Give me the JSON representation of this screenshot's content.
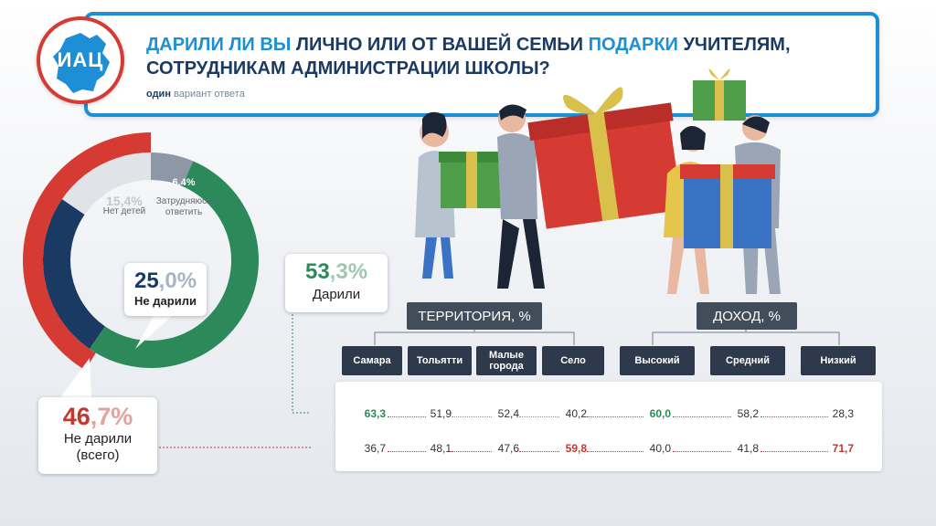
{
  "header": {
    "logo_text": "ИАЦ",
    "title_parts": [
      "Дарили ли вы",
      " лично или от вашей семьи ",
      "подарки",
      " учителям, сотрудникам администрации школы?"
    ],
    "subtitle_bold": "один",
    "subtitle_rest": " вариант ответа"
  },
  "chart_data": {
    "type": "pie",
    "title": "ДАРИЛИ ЛИ ВЫ ЛИЧНО ИЛИ ОТ ВАШЕЙ СЕМЬИ ПОДАРКИ УЧИТЕЛЯМ, СОТРУДНИКАМ АДМИНИСТРАЦИИ ШКОЛЫ?",
    "slices": [
      {
        "label": "Дарили",
        "value": 53.3,
        "color": "#2c8a5a"
      },
      {
        "label": "Не дарили",
        "value": 25.0,
        "color": "#1b3a63"
      },
      {
        "label": "Нет детей",
        "value": 15.4,
        "color": "#e0e3e8"
      },
      {
        "label": "Затрудняюсь ответить",
        "value": 6.4,
        "color": "#8d97a5"
      }
    ],
    "outer_ring": {
      "label": "Не дарили (всего)",
      "value": 46.7,
      "color": "#d53a33"
    }
  },
  "donut_labels": {
    "no_children_pct": "15,4%",
    "no_children": "Нет детей",
    "hard_pct": "6,4%",
    "hard_line1": "Затрудняюсь",
    "hard_line2": "ответить",
    "c25_main": "25",
    "c25_dec": ",0%",
    "c25_text": "Не дарили",
    "c53_main": "53",
    "c53_dec": ",3%",
    "c53_text": "Дарили",
    "c467_main": "46",
    "c467_dec": ",7%",
    "c467_line1": "Не дарили",
    "c467_line2": "(всего)"
  },
  "table": {
    "group_territory": "ТЕРРИТОРИЯ, %",
    "group_income": "ДОХОД, %",
    "columns": [
      "Самара",
      "Тольятти",
      "Малые\nгорода",
      "Село",
      "Высокий",
      "Средний",
      "Низкий"
    ],
    "row_gave": [
      "63,3",
      "51,9",
      "52,4",
      "40,2",
      "60,0",
      "58,2",
      "28,3"
    ],
    "row_not_gave": [
      "36,7",
      "48,1",
      "47,6",
      "59,8",
      "40,0",
      "41,8",
      "71,7"
    ]
  },
  "colors": {
    "green": "#2c8a5a",
    "red": "#c5362f",
    "navy": "#1b3a63",
    "blue": "#1d8fd6"
  }
}
